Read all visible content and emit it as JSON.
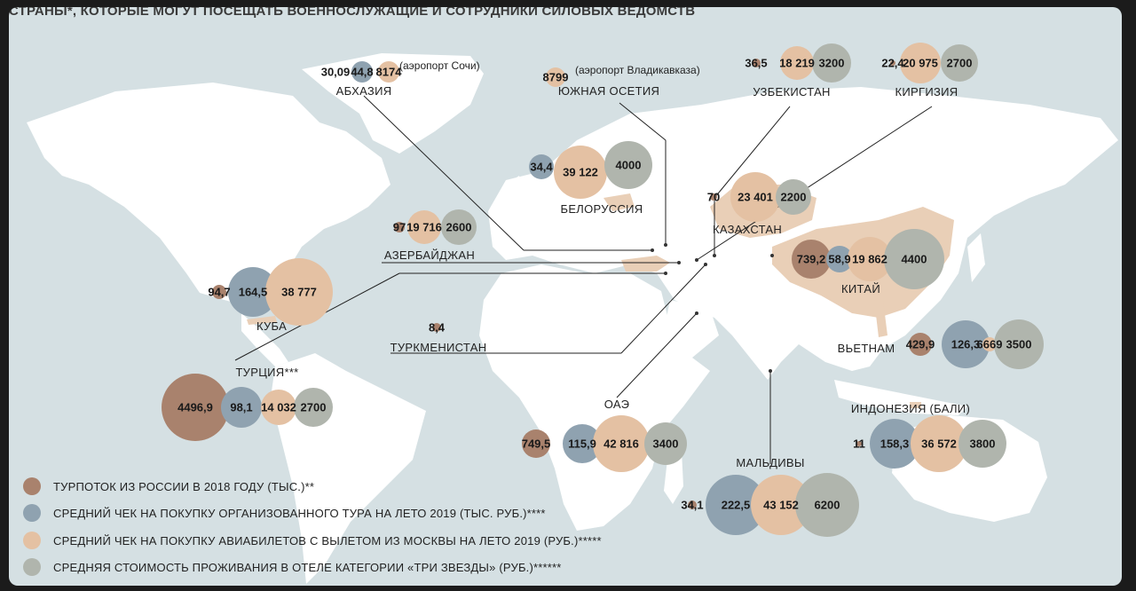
{
  "title": "СТРАНЫ*, КОТОРЫЕ МОГУТ ПОСЕЩАТЬ ВОЕННОСЛУЖАЩИЕ И СОТРУДНИКИ СИЛОВЫХ ВЕДОМСТВ",
  "colors": {
    "tourists": "#a9826d",
    "tour_price": "#8fa2b0",
    "air_price": "#e4c1a3",
    "hotel_price": "#b0b5ad",
    "land": "#ffffff",
    "water": "#d5e0e3",
    "highlight_land": "#e9cfb7"
  },
  "legend": [
    {
      "key": "tourists",
      "label": "ТУРПОТОК ИЗ РОССИИ В 2018 ГОДУ (ТЫС.)**"
    },
    {
      "key": "tour_price",
      "label": "СРЕДНИЙ ЧЕК НА ПОКУПКУ ОРГАНИЗОВАННОГО ТУРА НА ЛЕТО 2019 (ТЫС. РУБ.)****"
    },
    {
      "key": "air_price",
      "label": "СРЕДНИЙ ЧЕК НА ПОКУПКУ АВИАБИЛЕТОВ С ВЫЛЕТОМ ИЗ МОСКВЫ НА ЛЕТО 2019 (РУБ.)*****"
    },
    {
      "key": "hotel_price",
      "label": "СРЕДНЯЯ СТОИМОСТЬ ПРОЖИВАНИЯ В ОТЕЛЕ КАТЕГОРИИ «ТРИ ЗВЕЗДЫ» (РУБ.)******"
    }
  ],
  "countries": [
    {
      "name": "АБХАЗИЯ",
      "tourists": "30,09",
      "tour_price": "44,8",
      "air_price": "8174",
      "air_note": "(аэропорт Сочи)",
      "hotel_price": ""
    },
    {
      "name": "ЮЖНАЯ ОСЕТИЯ",
      "tourists": "",
      "tour_price": "",
      "air_price": "8799",
      "air_note": "(аэропорт Владикавказа)",
      "hotel_price": ""
    },
    {
      "name": "УЗБЕКИСТАН",
      "tourists": "36,5",
      "tour_price": "",
      "air_price": "18 219",
      "hotel_price": "3200"
    },
    {
      "name": "КИРГИЗИЯ",
      "tourists": "22,4",
      "tour_price": "",
      "air_price": "20 975",
      "hotel_price": "2700"
    },
    {
      "name": "БЕЛОРУССИЯ",
      "tourists": "",
      "tour_price": "34,4",
      "air_price": "39 122",
      "hotel_price": "4000"
    },
    {
      "name": "КАЗАХСТАН",
      "tourists": "70",
      "tour_price": "",
      "air_price": "23 401",
      "hotel_price": "2200"
    },
    {
      "name": "АЗЕРБАЙДЖАН",
      "tourists": "97",
      "tour_price": "",
      "air_price": "19 716",
      "hotel_price": "2600"
    },
    {
      "name": "КИТАЙ",
      "tourists": "739,2",
      "tour_price": "58,9",
      "air_price": "19 862",
      "hotel_price": "4400"
    },
    {
      "name": "КУБА",
      "tourists": "94,7",
      "tour_price": "164,5",
      "air_price": "38 777",
      "hotel_price": ""
    },
    {
      "name": "ТУРКМЕНИСТАН",
      "tourists": "8,4",
      "tour_price": "",
      "air_price": "",
      "hotel_price": ""
    },
    {
      "name": "ТУРЦИЯ***",
      "tourists": "4496,9",
      "tour_price": "98,1",
      "air_price": "14 032",
      "hotel_price": "2700"
    },
    {
      "name": "ВЬЕТНАМ",
      "tourists": "429,9",
      "tour_price": "126,3",
      "air_price": "6669",
      "hotel_price": "3500"
    },
    {
      "name": "ОАЭ",
      "tourists": "749,5",
      "tour_price": "115,9",
      "air_price": "42 816",
      "hotel_price": "3400"
    },
    {
      "name": "ИНДОНЕЗИЯ (БАЛИ)",
      "tourists": "11",
      "tour_price": "158,3",
      "air_price": "36 572",
      "hotel_price": "3800"
    },
    {
      "name": "МАЛЬДИВЫ",
      "tourists": "34,1",
      "tour_price": "222,5",
      "air_price": "43 152",
      "hotel_price": "6200"
    }
  ]
}
